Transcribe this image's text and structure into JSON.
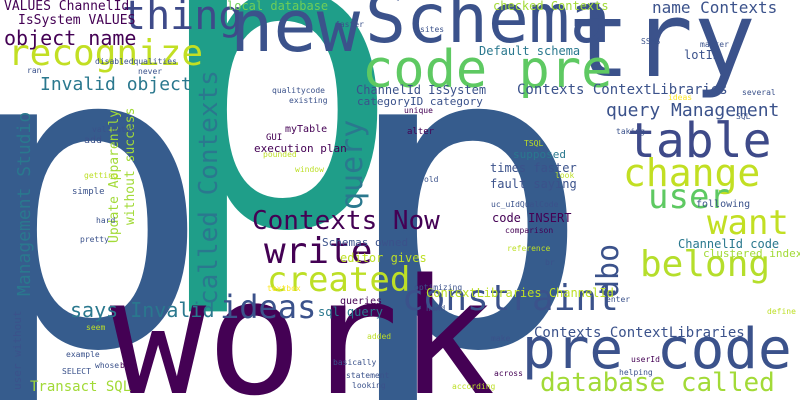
{
  "words": [
    {
      "text": "p",
      "color": "#365c8d"
    },
    {
      "text": "p",
      "color": "#1f9e89"
    },
    {
      "text": "p",
      "color": "#365c8d"
    },
    {
      "text": "work",
      "color": "#440154"
    },
    {
      "text": "try",
      "color": "#3b528b"
    },
    {
      "text": "Schema",
      "color": "#3b528b"
    },
    {
      "text": "new",
      "color": "#3b528b"
    },
    {
      "text": "pre code",
      "color": "#3b528b"
    },
    {
      "text": "code pre",
      "color": "#5ec962"
    },
    {
      "text": "thing",
      "color": "#3e4a89"
    },
    {
      "text": "recognize",
      "color": "#c2df23"
    },
    {
      "text": "table",
      "color": "#3e4a89"
    },
    {
      "text": "change",
      "color": "#c2df23"
    },
    {
      "text": "user",
      "color": "#5ec962"
    },
    {
      "text": "want",
      "color": "#c2df23"
    },
    {
      "text": "belong",
      "color": "#b5de2b"
    },
    {
      "text": "write",
      "color": "#440154"
    },
    {
      "text": "created",
      "color": "#bddf26"
    },
    {
      "text": "ideas",
      "color": "#3b528b"
    },
    {
      "text": "constraint",
      "color": "#3b528b"
    },
    {
      "text": "database called",
      "color": "#a2da37"
    },
    {
      "text": "Contexts Now",
      "color": "#440154"
    },
    {
      "text": "called Contexts",
      "color": "#2a788e"
    },
    {
      "text": "query",
      "color": "#2a788e"
    },
    {
      "text": "dbo",
      "color": "#3b528b"
    },
    {
      "text": "object name",
      "color": "#440154"
    },
    {
      "text": "Invalid object",
      "color": "#2a788e"
    },
    {
      "text": "says Invalid",
      "color": "#2a788e"
    },
    {
      "text": "Management Studio",
      "color": "#2a788e"
    },
    {
      "text": "query Management",
      "color": "#3b528b"
    },
    {
      "text": "name Contexts",
      "color": "#3b528b"
    },
    {
      "text": "Contexts ContextLibraries",
      "color": "#3b528b"
    },
    {
      "text": "Contexts ContextLibraries'",
      "color": "#3b528b"
    },
    {
      "text": "VALUES ChannelId",
      "color": "#440154"
    },
    {
      "text": "IsSystem VALUES",
      "color": "#440154"
    },
    {
      "text": "local database",
      "color": "#6ece58"
    },
    {
      "text": "checked Contexts",
      "color": "#a2da37"
    },
    {
      "text": "Default schema",
      "color": "#2a788e"
    },
    {
      "text": "lotID",
      "color": "#3b528b"
    },
    {
      "text": "ChannelId IsSystem",
      "color": "#3b528b"
    },
    {
      "text": "categoryID category",
      "color": "#3b528b"
    },
    {
      "text": "times faster",
      "color": "#3b528b"
    },
    {
      "text": "fault saying",
      "color": "#3b528b"
    },
    {
      "text": "code INSERT",
      "color": "#440154"
    },
    {
      "text": "execution plan",
      "color": "#440154"
    },
    {
      "text": "myTable",
      "color": "#440154"
    },
    {
      "text": "Update Apparently",
      "color": "#a2da37"
    },
    {
      "text": "without success",
      "color": "#a2da37"
    },
    {
      "text": "Schemas owned",
      "color": "#3b528b"
    },
    {
      "text": "editor gives",
      "color": "#bddf26"
    },
    {
      "text": "ChannelId code",
      "color": "#2a788e"
    },
    {
      "text": "clustered index",
      "color": "#a2da37"
    },
    {
      "text": "ContextLibraries ChannelId",
      "color": "#bddf26"
    },
    {
      "text": "sql query",
      "color": "#2a788e"
    },
    {
      "text": "queries",
      "color": "#440154"
    },
    {
      "text": "Transact SQL",
      "color": "#a2da37"
    },
    {
      "text": "user without",
      "color": "#3b528b"
    },
    {
      "text": "supposed",
      "color": "#2a788e"
    },
    {
      "text": "following",
      "color": "#3b528b"
    },
    {
      "text": "uc_uIdQualCode",
      "color": "#3b528b"
    },
    {
      "text": "comparison",
      "color": "#440154"
    },
    {
      "text": "qualitycode",
      "color": "#3b528b"
    },
    {
      "text": "existing",
      "color": "#3b528b"
    },
    {
      "text": "unique",
      "color": "#440154"
    },
    {
      "text": "alter",
      "color": "#440154"
    },
    {
      "text": "GUI",
      "color": "#440154"
    },
    {
      "text": "pounded",
      "color": "#bddf26"
    },
    {
      "text": "window",
      "color": "#bddf26"
    },
    {
      "text": "add",
      "color": "#3b528b"
    },
    {
      "text": "getting",
      "color": "#bddf26"
    },
    {
      "text": "simple",
      "color": "#3b528b"
    },
    {
      "text": "hard",
      "color": "#3b528b"
    },
    {
      "text": "pretty",
      "color": "#3b528b"
    },
    {
      "text": "validates",
      "color": "#3b528b"
    },
    {
      "text": "disabledqualities",
      "color": "#3b528b"
    },
    {
      "text": "never",
      "color": "#3b528b"
    },
    {
      "text": "ran",
      "color": "#3b528b"
    },
    {
      "text": "faster",
      "color": "#3b528b"
    },
    {
      "text": "sites",
      "color": "#3b528b"
    },
    {
      "text": "SSMS",
      "color": "#3b528b"
    },
    {
      "text": "matter",
      "color": "#3b528b"
    },
    {
      "text": "ideas",
      "color": "#fde725"
    },
    {
      "text": "several",
      "color": "#3b528b"
    },
    {
      "text": "SQL",
      "color": "#3b528b"
    },
    {
      "text": "taking",
      "color": "#3b528b"
    },
    {
      "text": "TSQL",
      "color": "#bddf26"
    },
    {
      "text": "old",
      "color": "#3b528b"
    },
    {
      "text": "look",
      "color": "#bddf26"
    },
    {
      "text": "textbox",
      "color": "#fde725"
    },
    {
      "text": "optimizing",
      "color": "#3b528b"
    },
    {
      "text": "hand",
      "color": "#3b528b"
    },
    {
      "text": "reference",
      "color": "#bddf26"
    },
    {
      "text": "br",
      "color": "#3b528b"
    },
    {
      "text": "enter",
      "color": "#3b528b"
    },
    {
      "text": "define",
      "color": "#bddf26"
    },
    {
      "text": "seem",
      "color": "#bddf26"
    },
    {
      "text": "added",
      "color": "#bddf26"
    },
    {
      "text": "make",
      "color": "#3b528b"
    },
    {
      "text": "basically",
      "color": "#3b528b"
    },
    {
      "text": "example",
      "color": "#3b528b"
    },
    {
      "text": "whose",
      "color": "#3b528b"
    },
    {
      "text": "box",
      "color": "#440154"
    },
    {
      "text": "SELECT",
      "color": "#3b528b"
    },
    {
      "text": "statement",
      "color": "#3b528b"
    },
    {
      "text": "looking",
      "color": "#3b528b"
    },
    {
      "text": "across",
      "color": "#440154"
    },
    {
      "text": "userId",
      "color": "#440154"
    },
    {
      "text": "helping",
      "color": "#3b528b"
    },
    {
      "text": "according",
      "color": "#bddf26"
    }
  ]
}
